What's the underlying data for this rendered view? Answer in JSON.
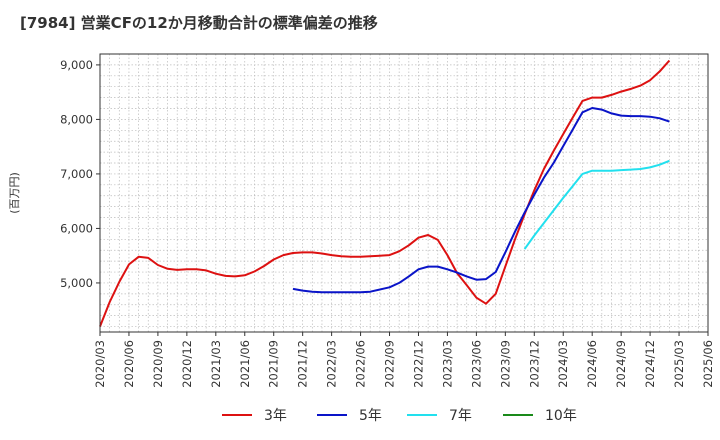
{
  "chart_data": {
    "type": "line",
    "title": "[7984]  営業CFの12か月移動合計の標準偏差の推移",
    "ylabel": "(百万円)",
    "xlabel": "",
    "ylim": [
      4100,
      9200
    ],
    "yticks": [
      5000,
      6000,
      7000,
      8000,
      9000
    ],
    "ytick_labels": [
      "5,000",
      "6,000",
      "7,000",
      "8,000",
      "9,000"
    ],
    "x_tick_labels": [
      "2020/03",
      "2020/06",
      "2020/09",
      "2020/12",
      "2021/03",
      "2021/06",
      "2021/09",
      "2021/12",
      "2022/03",
      "2022/06",
      "2022/09",
      "2022/12",
      "2023/03",
      "2023/06",
      "2023/09",
      "2023/12",
      "2024/03",
      "2024/06",
      "2024/09",
      "2024/12",
      "2025/03",
      "2025/06"
    ],
    "x_start": "2020/03",
    "x_end": "2025/06",
    "grid": true,
    "legend_position": "bottom",
    "series": [
      {
        "name": "3年",
        "color": "#dd1111",
        "points": [
          [
            "2020/03",
            4200
          ],
          [
            "2020/04",
            4650
          ],
          [
            "2020/05",
            5020
          ],
          [
            "2020/06",
            5340
          ],
          [
            "2020/07",
            5480
          ],
          [
            "2020/08",
            5460
          ],
          [
            "2020/09",
            5330
          ],
          [
            "2020/10",
            5260
          ],
          [
            "2020/11",
            5240
          ],
          [
            "2020/12",
            5250
          ],
          [
            "2021/01",
            5250
          ],
          [
            "2021/02",
            5230
          ],
          [
            "2021/03",
            5170
          ],
          [
            "2021/04",
            5130
          ],
          [
            "2021/05",
            5120
          ],
          [
            "2021/06",
            5140
          ],
          [
            "2021/07",
            5210
          ],
          [
            "2021/08",
            5310
          ],
          [
            "2021/09",
            5430
          ],
          [
            "2021/10",
            5510
          ],
          [
            "2021/11",
            5550
          ],
          [
            "2021/12",
            5560
          ],
          [
            "2022/01",
            5560
          ],
          [
            "2022/02",
            5540
          ],
          [
            "2022/03",
            5510
          ],
          [
            "2022/04",
            5490
          ],
          [
            "2022/05",
            5480
          ],
          [
            "2022/06",
            5480
          ],
          [
            "2022/07",
            5490
          ],
          [
            "2022/08",
            5500
          ],
          [
            "2022/09",
            5510
          ],
          [
            "2022/10",
            5580
          ],
          [
            "2022/11",
            5690
          ],
          [
            "2022/12",
            5830
          ],
          [
            "2023/01",
            5880
          ],
          [
            "2023/02",
            5790
          ],
          [
            "2023/03",
            5510
          ],
          [
            "2023/04",
            5180
          ],
          [
            "2023/05",
            4960
          ],
          [
            "2023/06",
            4730
          ],
          [
            "2023/07",
            4620
          ],
          [
            "2023/08",
            4800
          ],
          [
            "2023/09",
            5300
          ],
          [
            "2023/10",
            5800
          ],
          [
            "2023/11",
            6260
          ],
          [
            "2023/12",
            6700
          ],
          [
            "2024/01",
            7090
          ],
          [
            "2024/02",
            7420
          ],
          [
            "2024/03",
            7730
          ],
          [
            "2024/04",
            8040
          ],
          [
            "2024/05",
            8340
          ],
          [
            "2024/06",
            8400
          ],
          [
            "2024/07",
            8400
          ],
          [
            "2024/08",
            8450
          ],
          [
            "2024/09",
            8510
          ],
          [
            "2024/10",
            8560
          ],
          [
            "2024/11",
            8620
          ],
          [
            "2024/12",
            8720
          ],
          [
            "2025/01",
            8880
          ],
          [
            "2025/02",
            9080
          ]
        ]
      },
      {
        "name": "5年",
        "color": "#0a14c8",
        "points": [
          [
            "2021/11",
            4890
          ],
          [
            "2021/12",
            4860
          ],
          [
            "2022/01",
            4840
          ],
          [
            "2022/02",
            4830
          ],
          [
            "2022/03",
            4830
          ],
          [
            "2022/04",
            4830
          ],
          [
            "2022/05",
            4830
          ],
          [
            "2022/06",
            4830
          ],
          [
            "2022/07",
            4840
          ],
          [
            "2022/08",
            4880
          ],
          [
            "2022/09",
            4920
          ],
          [
            "2022/10",
            5000
          ],
          [
            "2022/11",
            5120
          ],
          [
            "2022/12",
            5250
          ],
          [
            "2023/01",
            5300
          ],
          [
            "2023/02",
            5300
          ],
          [
            "2023/03",
            5250
          ],
          [
            "2023/04",
            5190
          ],
          [
            "2023/05",
            5120
          ],
          [
            "2023/06",
            5060
          ],
          [
            "2023/07",
            5070
          ],
          [
            "2023/08",
            5200
          ],
          [
            "2023/09",
            5560
          ],
          [
            "2023/10",
            5940
          ],
          [
            "2023/11",
            6290
          ],
          [
            "2023/12",
            6620
          ],
          [
            "2024/01",
            6930
          ],
          [
            "2024/02",
            7200
          ],
          [
            "2024/03",
            7510
          ],
          [
            "2024/04",
            7820
          ],
          [
            "2024/05",
            8130
          ],
          [
            "2024/06",
            8210
          ],
          [
            "2024/07",
            8180
          ],
          [
            "2024/08",
            8110
          ],
          [
            "2024/09",
            8070
          ],
          [
            "2024/10",
            8060
          ],
          [
            "2024/11",
            8060
          ],
          [
            "2024/12",
            8050
          ],
          [
            "2025/01",
            8020
          ],
          [
            "2025/02",
            7960
          ]
        ]
      },
      {
        "name": "7年",
        "color": "#22e0ee",
        "points": [
          [
            "2023/11",
            5620
          ],
          [
            "2023/12",
            5870
          ],
          [
            "2024/01",
            6100
          ],
          [
            "2024/02",
            6330
          ],
          [
            "2024/03",
            6560
          ],
          [
            "2024/04",
            6780
          ],
          [
            "2024/05",
            7000
          ],
          [
            "2024/06",
            7060
          ],
          [
            "2024/07",
            7060
          ],
          [
            "2024/08",
            7060
          ],
          [
            "2024/09",
            7070
          ],
          [
            "2024/10",
            7080
          ],
          [
            "2024/11",
            7090
          ],
          [
            "2024/12",
            7120
          ],
          [
            "2025/01",
            7170
          ],
          [
            "2025/02",
            7240
          ]
        ]
      },
      {
        "name": "10年",
        "color": "#1a8a1a",
        "points": []
      }
    ]
  }
}
